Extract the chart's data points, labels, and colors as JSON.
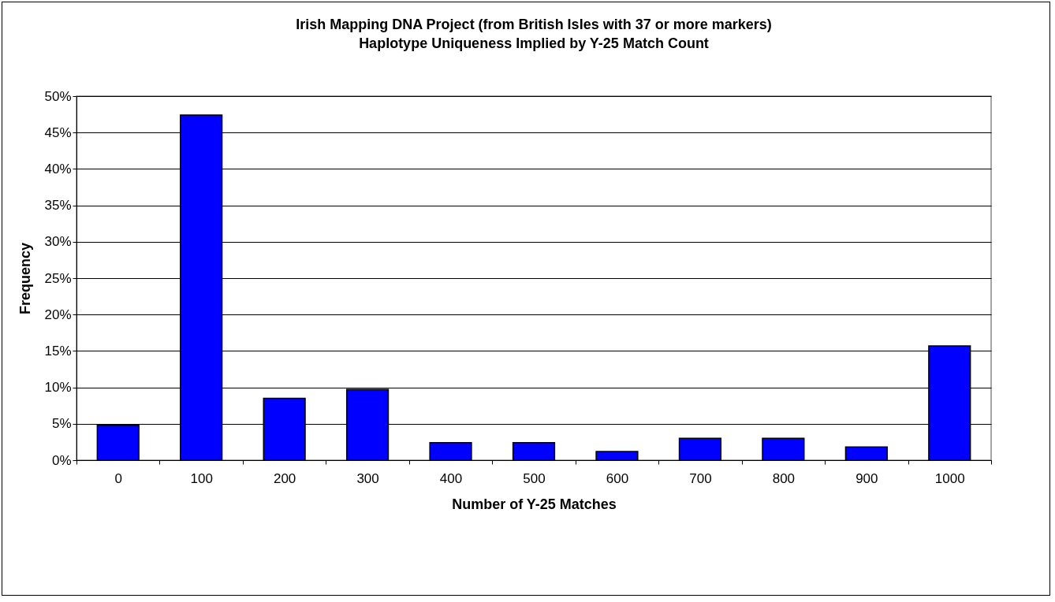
{
  "chart_data": {
    "type": "bar",
    "title": "Irish Mapping DNA Project (from British Isles with 37 or more markers)",
    "subtitle": "Haplotype Uniqueness Implied by Y-25 Match Count",
    "xlabel": "Number of Y-25 Matches",
    "ylabel": "Frequency",
    "categories": [
      "0",
      "100",
      "200",
      "300",
      "400",
      "500",
      "600",
      "700",
      "800",
      "900",
      "1000"
    ],
    "values": [
      4.8,
      47.4,
      8.5,
      9.7,
      2.4,
      2.4,
      1.2,
      3.0,
      3.0,
      1.8,
      15.7
    ],
    "color": "#0000ff",
    "ylim": [
      0,
      50
    ],
    "yticks": [
      {
        "value": 0,
        "label": "0%"
      },
      {
        "value": 5,
        "label": "5%"
      },
      {
        "value": 10,
        "label": "10%"
      },
      {
        "value": 15,
        "label": "15%"
      },
      {
        "value": 20,
        "label": "20%"
      },
      {
        "value": 25,
        "label": "25%"
      },
      {
        "value": 30,
        "label": "30%"
      },
      {
        "value": 35,
        "label": "35%"
      },
      {
        "value": 40,
        "label": "40%"
      },
      {
        "value": 45,
        "label": "45%"
      },
      {
        "value": 50,
        "label": "50%"
      }
    ],
    "grid": "y"
  }
}
